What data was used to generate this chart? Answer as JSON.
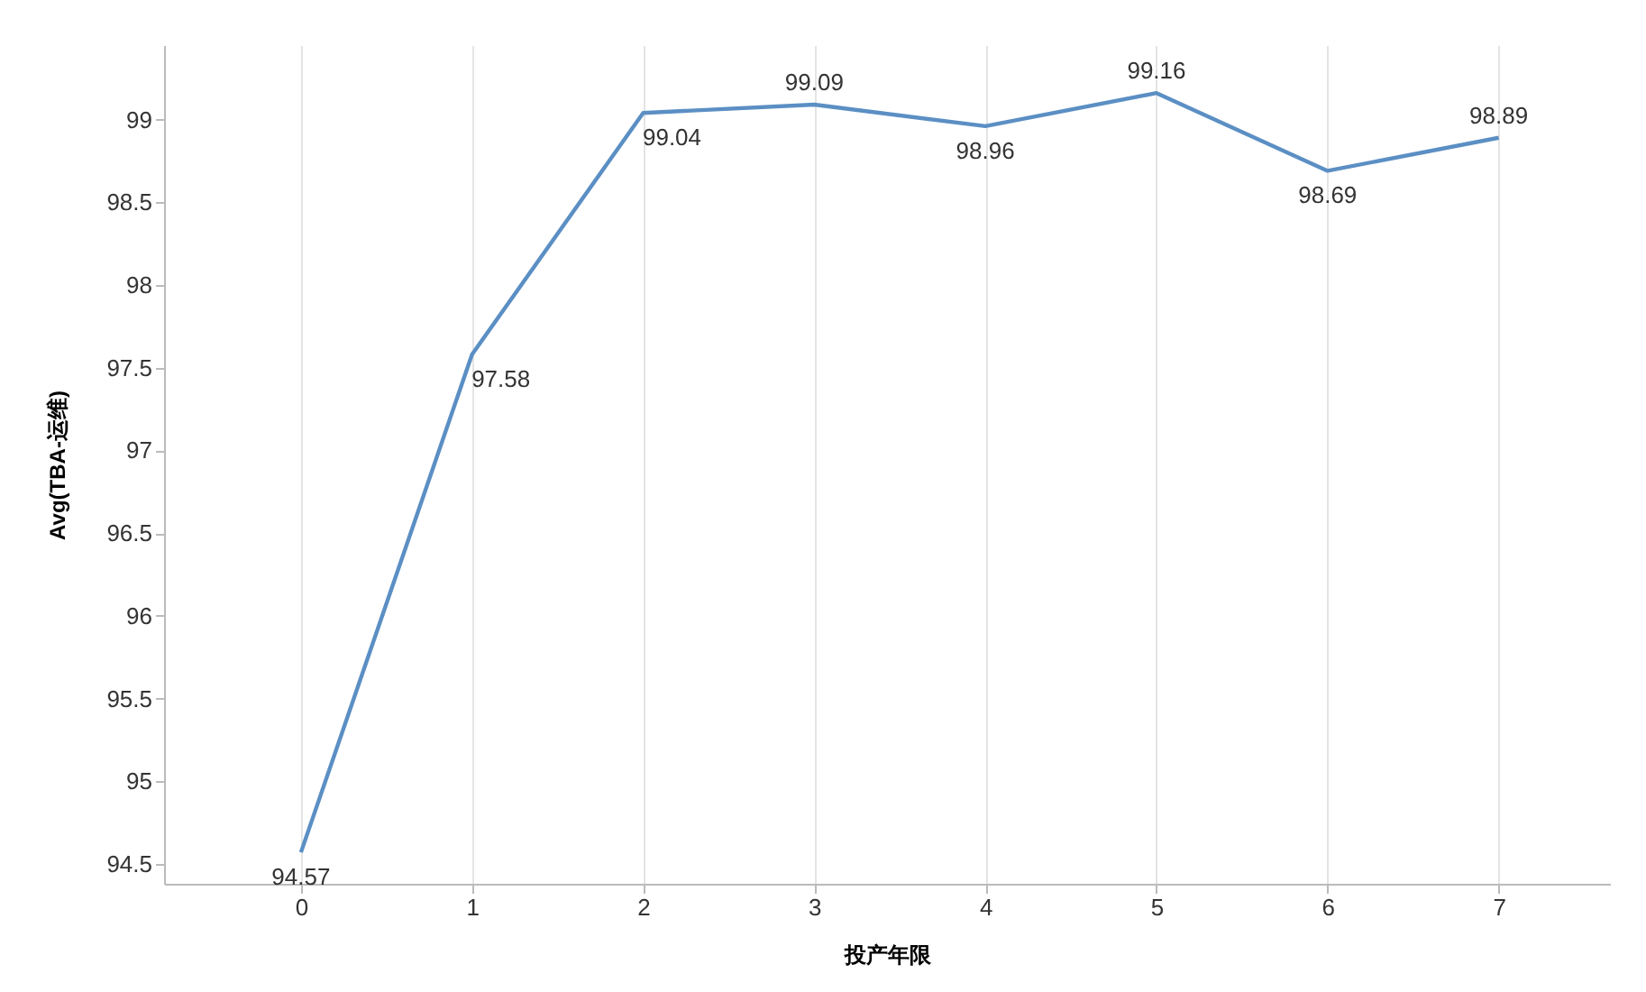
{
  "chart_data": {
    "type": "line",
    "xlabel": "投产年限",
    "ylabel": "Avg(TBA-运维)",
    "x": [
      0,
      1,
      2,
      3,
      4,
      5,
      6,
      7
    ],
    "series": [
      {
        "color": "#5b8fc4",
        "values": [
          94.57,
          97.58,
          99.04,
          99.09,
          98.96,
          99.16,
          98.69,
          98.89
        ]
      }
    ],
    "xlim": [
      -0.8,
      7.65
    ],
    "xticks": [
      0,
      1,
      2,
      3,
      4,
      5,
      6,
      7
    ],
    "ylim": [
      94.38,
      99.45
    ],
    "yticks": [
      94.5,
      95,
      95.5,
      96,
      96.5,
      97,
      97.5,
      98,
      98.5,
      99
    ],
    "grid": "x",
    "data_labels": true
  }
}
